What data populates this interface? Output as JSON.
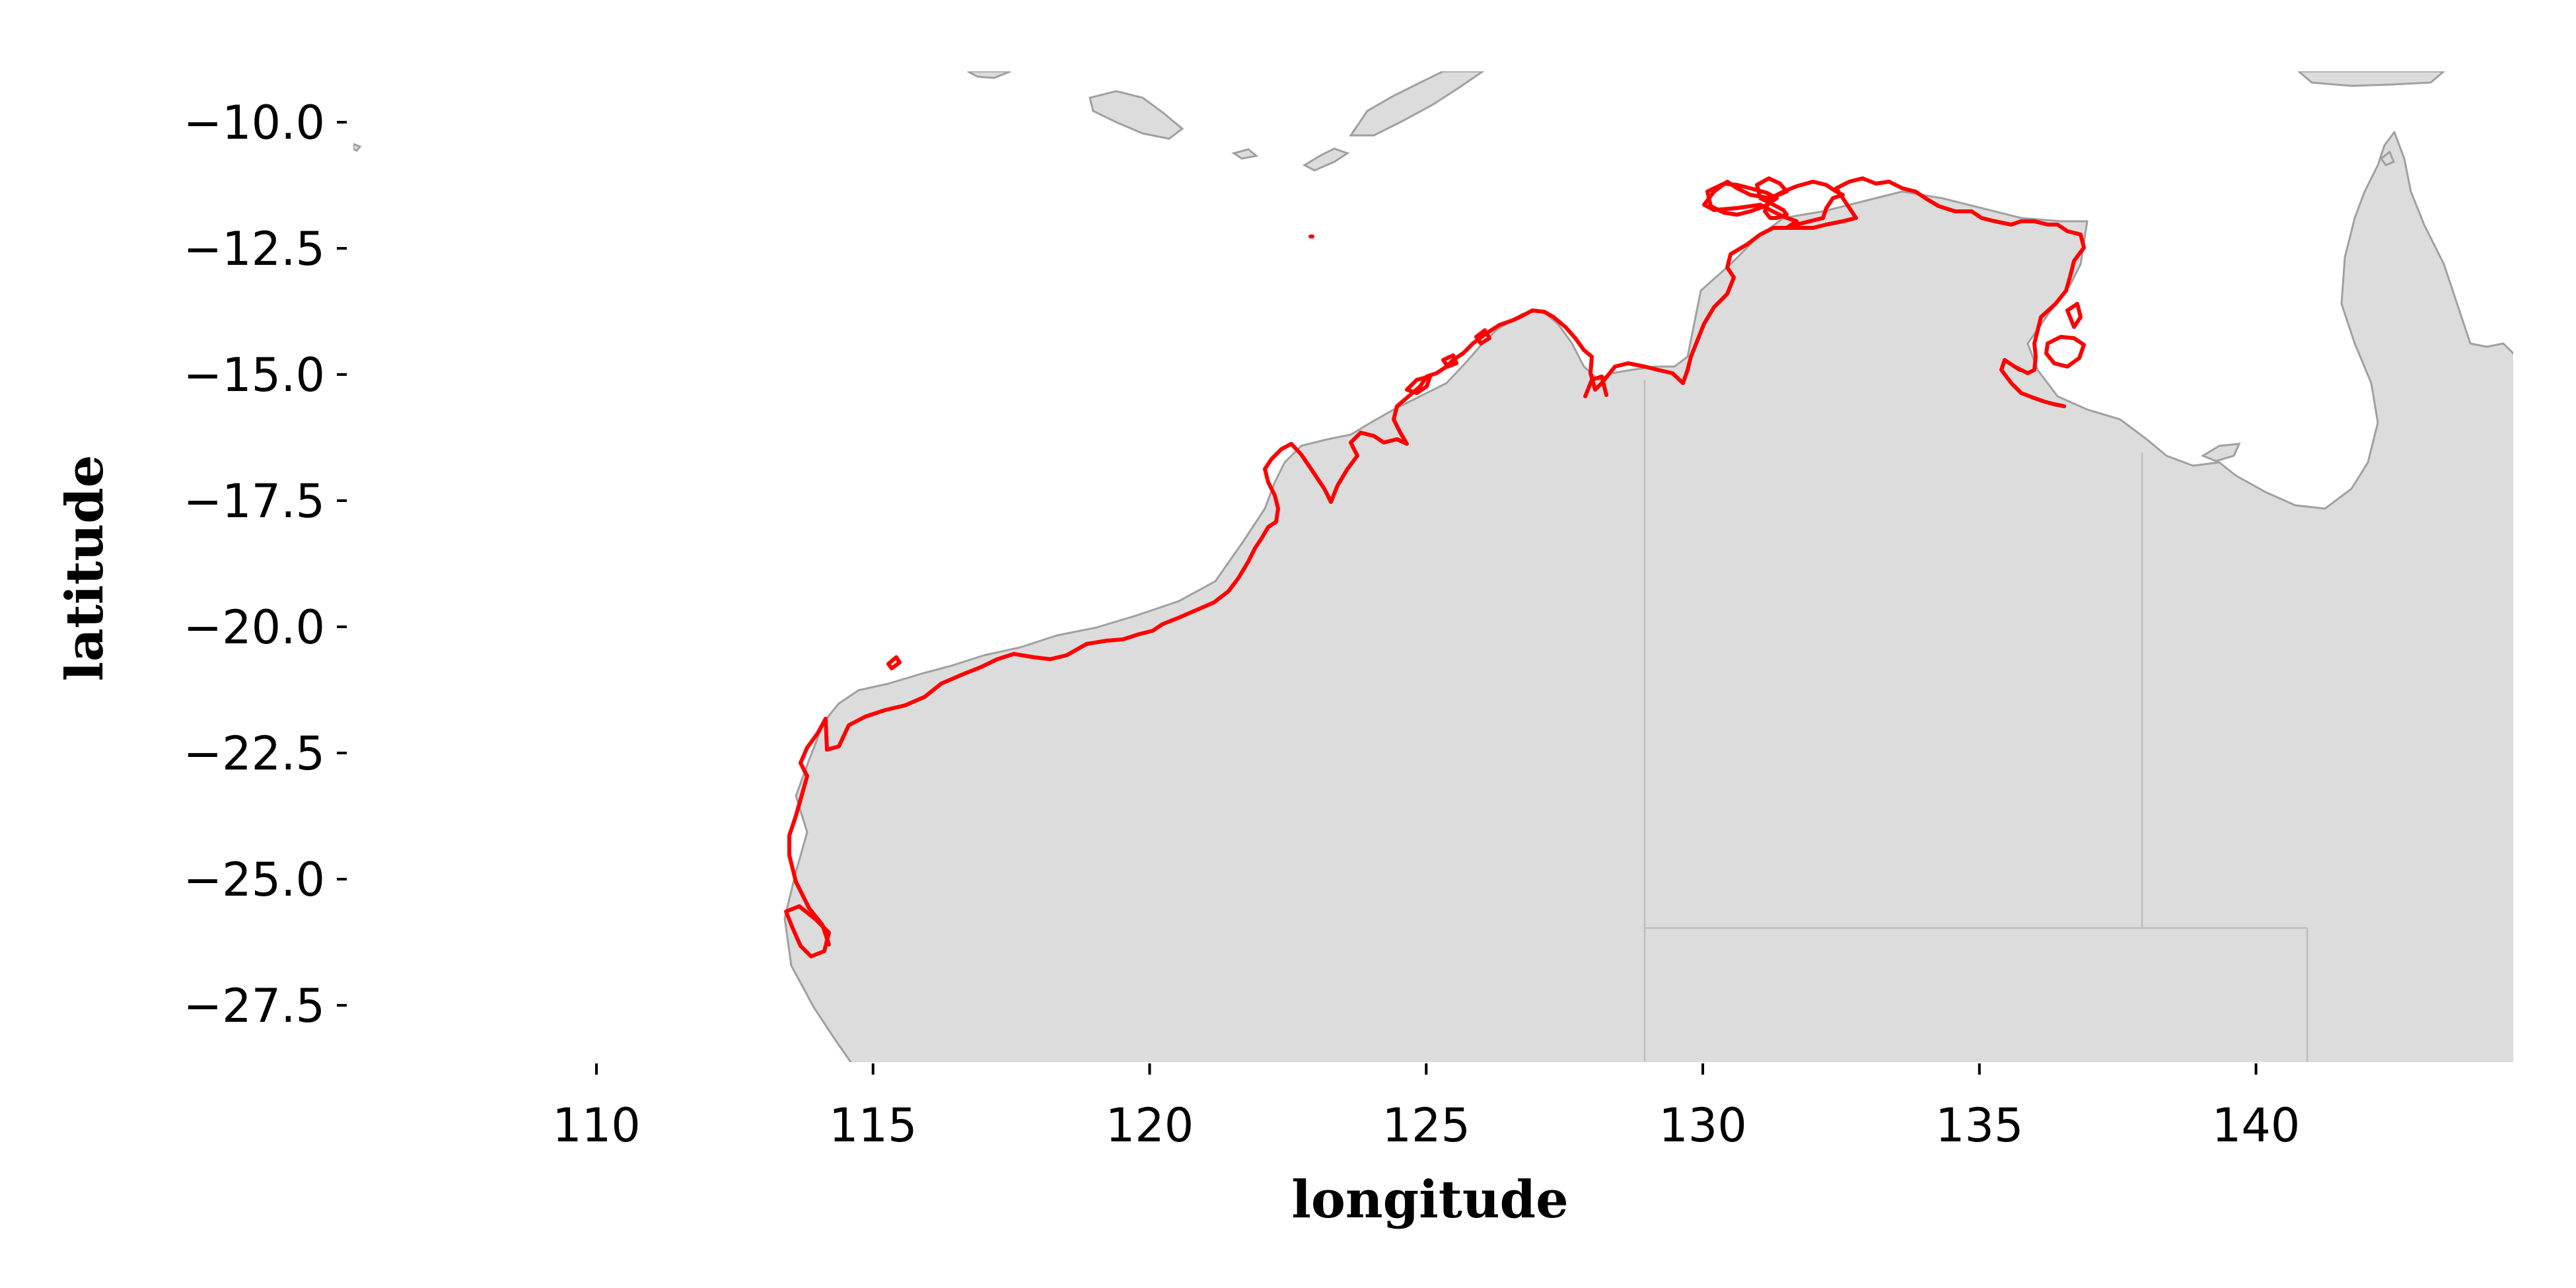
{
  "map": {
    "xlabel": "longitude",
    "ylabel": "latitude",
    "xlim": [
      105.5,
      144.7
    ],
    "ylim": [
      -28.9,
      -9.3
    ],
    "x_ticks": [
      {
        "value": 110,
        "label": "110"
      },
      {
        "value": 115,
        "label": "115"
      },
      {
        "value": 120,
        "label": "120"
      },
      {
        "value": 125,
        "label": "125"
      },
      {
        "value": 130,
        "label": "130"
      },
      {
        "value": 135,
        "label": "135"
      },
      {
        "value": 140,
        "label": "140"
      }
    ],
    "y_ticks": [
      {
        "value": -10.0,
        "label": "−10.0"
      },
      {
        "value": -12.5,
        "label": "−12.5"
      },
      {
        "value": -15.0,
        "label": "−15.0"
      },
      {
        "value": -17.5,
        "label": "−17.5"
      },
      {
        "value": -20.0,
        "label": "−20.0"
      },
      {
        "value": -22.5,
        "label": "−22.5"
      },
      {
        "value": -25.0,
        "label": "−25.0"
      },
      {
        "value": -27.5,
        "label": "−27.5"
      }
    ],
    "colors": {
      "land": "#dcdcdc",
      "land_outline": "#a0a0a0",
      "state_border": "#bdbdbd",
      "highlighted_coastline": "#ff0000"
    },
    "highlighted_region": "Western Australia and Northern Territory coastline",
    "grid": false
  }
}
